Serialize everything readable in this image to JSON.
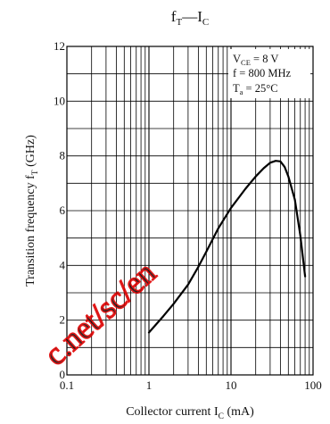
{
  "chart_data": {
    "type": "line",
    "title": {
      "main": "f",
      "main_sub": "T",
      "sep": "—",
      "tail": "I",
      "tail_sub": "C"
    },
    "xlabel": {
      "main": "Collector current  I",
      "sub": "C",
      "tail": " (mA)"
    },
    "ylabel": {
      "main": "Transition frequency  f",
      "sub": "T",
      "tail": "  (GHz)"
    },
    "x_scale": "log",
    "xlim": [
      0.1,
      100
    ],
    "ylim": [
      0,
      12
    ],
    "x_ticks": [
      0.1,
      1,
      10,
      100
    ],
    "x_tick_labels": [
      "0.1",
      "1",
      "10",
      "100"
    ],
    "y_ticks": [
      0,
      2,
      4,
      6,
      8,
      10,
      12
    ],
    "y_tick_labels": [
      "0",
      "2",
      "4",
      "6",
      "8",
      "10",
      "12"
    ],
    "grid": true,
    "conditions": [
      {
        "main": "V",
        "sub": "CE",
        "tail": " = 8 V"
      },
      {
        "main": "f = 800 MHz",
        "sub": "",
        "tail": ""
      },
      {
        "main": "T",
        "sub": "a",
        "tail": " = 25°C"
      }
    ],
    "series": [
      {
        "x": [
          1.0,
          1.5,
          2.0,
          3.0,
          4.0,
          5.0,
          7.0,
          10.0,
          15.0,
          20.0,
          25.0,
          30.0,
          35.0,
          40.0,
          45.0,
          50.0,
          60.0,
          70.0,
          80.0
        ],
        "y": [
          1.55,
          2.15,
          2.6,
          3.3,
          3.95,
          4.5,
          5.35,
          6.1,
          6.8,
          7.25,
          7.55,
          7.75,
          7.82,
          7.8,
          7.6,
          7.25,
          6.4,
          5.1,
          3.6
        ]
      }
    ],
    "watermark": {
      "text": "c.net/sc/en",
      "color": "#e00000"
    }
  }
}
